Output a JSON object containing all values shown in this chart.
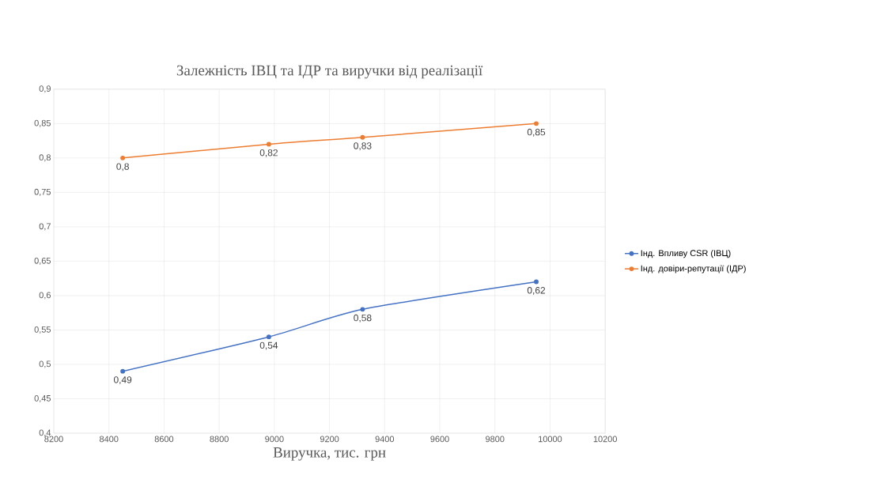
{
  "chart_data": {
    "type": "line",
    "title": "Залежність ІВЦ та ІДР та виручки від реалізації",
    "xlabel": "Виручка, тис. грн",
    "x": [
      8450,
      8980,
      9320,
      9950
    ],
    "series": [
      {
        "name": "Інд. Впливу CSR (ІВЦ)",
        "color": "#4472c4",
        "values": [
          0.49,
          0.54,
          0.58,
          0.62
        ],
        "value_labels": [
          "0,49",
          "0,54",
          "0,58",
          "0,62"
        ]
      },
      {
        "name": "Інд. довіри-репутації (ІДР)",
        "color": "#ed7d31",
        "values": [
          0.8,
          0.82,
          0.83,
          0.85
        ],
        "value_labels": [
          "0,8",
          "0,82",
          "0,83",
          "0,85"
        ]
      }
    ],
    "xlim": [
      8200,
      10200
    ],
    "xticks": [
      8200,
      8400,
      8600,
      8800,
      9000,
      9200,
      9400,
      9600,
      9800,
      10000,
      10200
    ],
    "ylim": [
      0.4,
      0.9
    ],
    "yticks": [
      {
        "value": 0.4,
        "label": "0,4"
      },
      {
        "value": 0.45,
        "label": "0,45"
      },
      {
        "value": 0.5,
        "label": "0,5"
      },
      {
        "value": 0.55,
        "label": "0,55"
      },
      {
        "value": 0.6,
        "label": "0,6"
      },
      {
        "value": 0.65,
        "label": "0,65"
      },
      {
        "value": 0.7,
        "label": "0,7"
      },
      {
        "value": 0.75,
        "label": "0,75"
      },
      {
        "value": 0.8,
        "label": "0,8"
      },
      {
        "value": 0.85,
        "label": "0,85"
      },
      {
        "value": 0.9,
        "label": "0,9"
      }
    ],
    "grid": true,
    "legend": "right",
    "marker": "circle",
    "line_style": "solid"
  }
}
